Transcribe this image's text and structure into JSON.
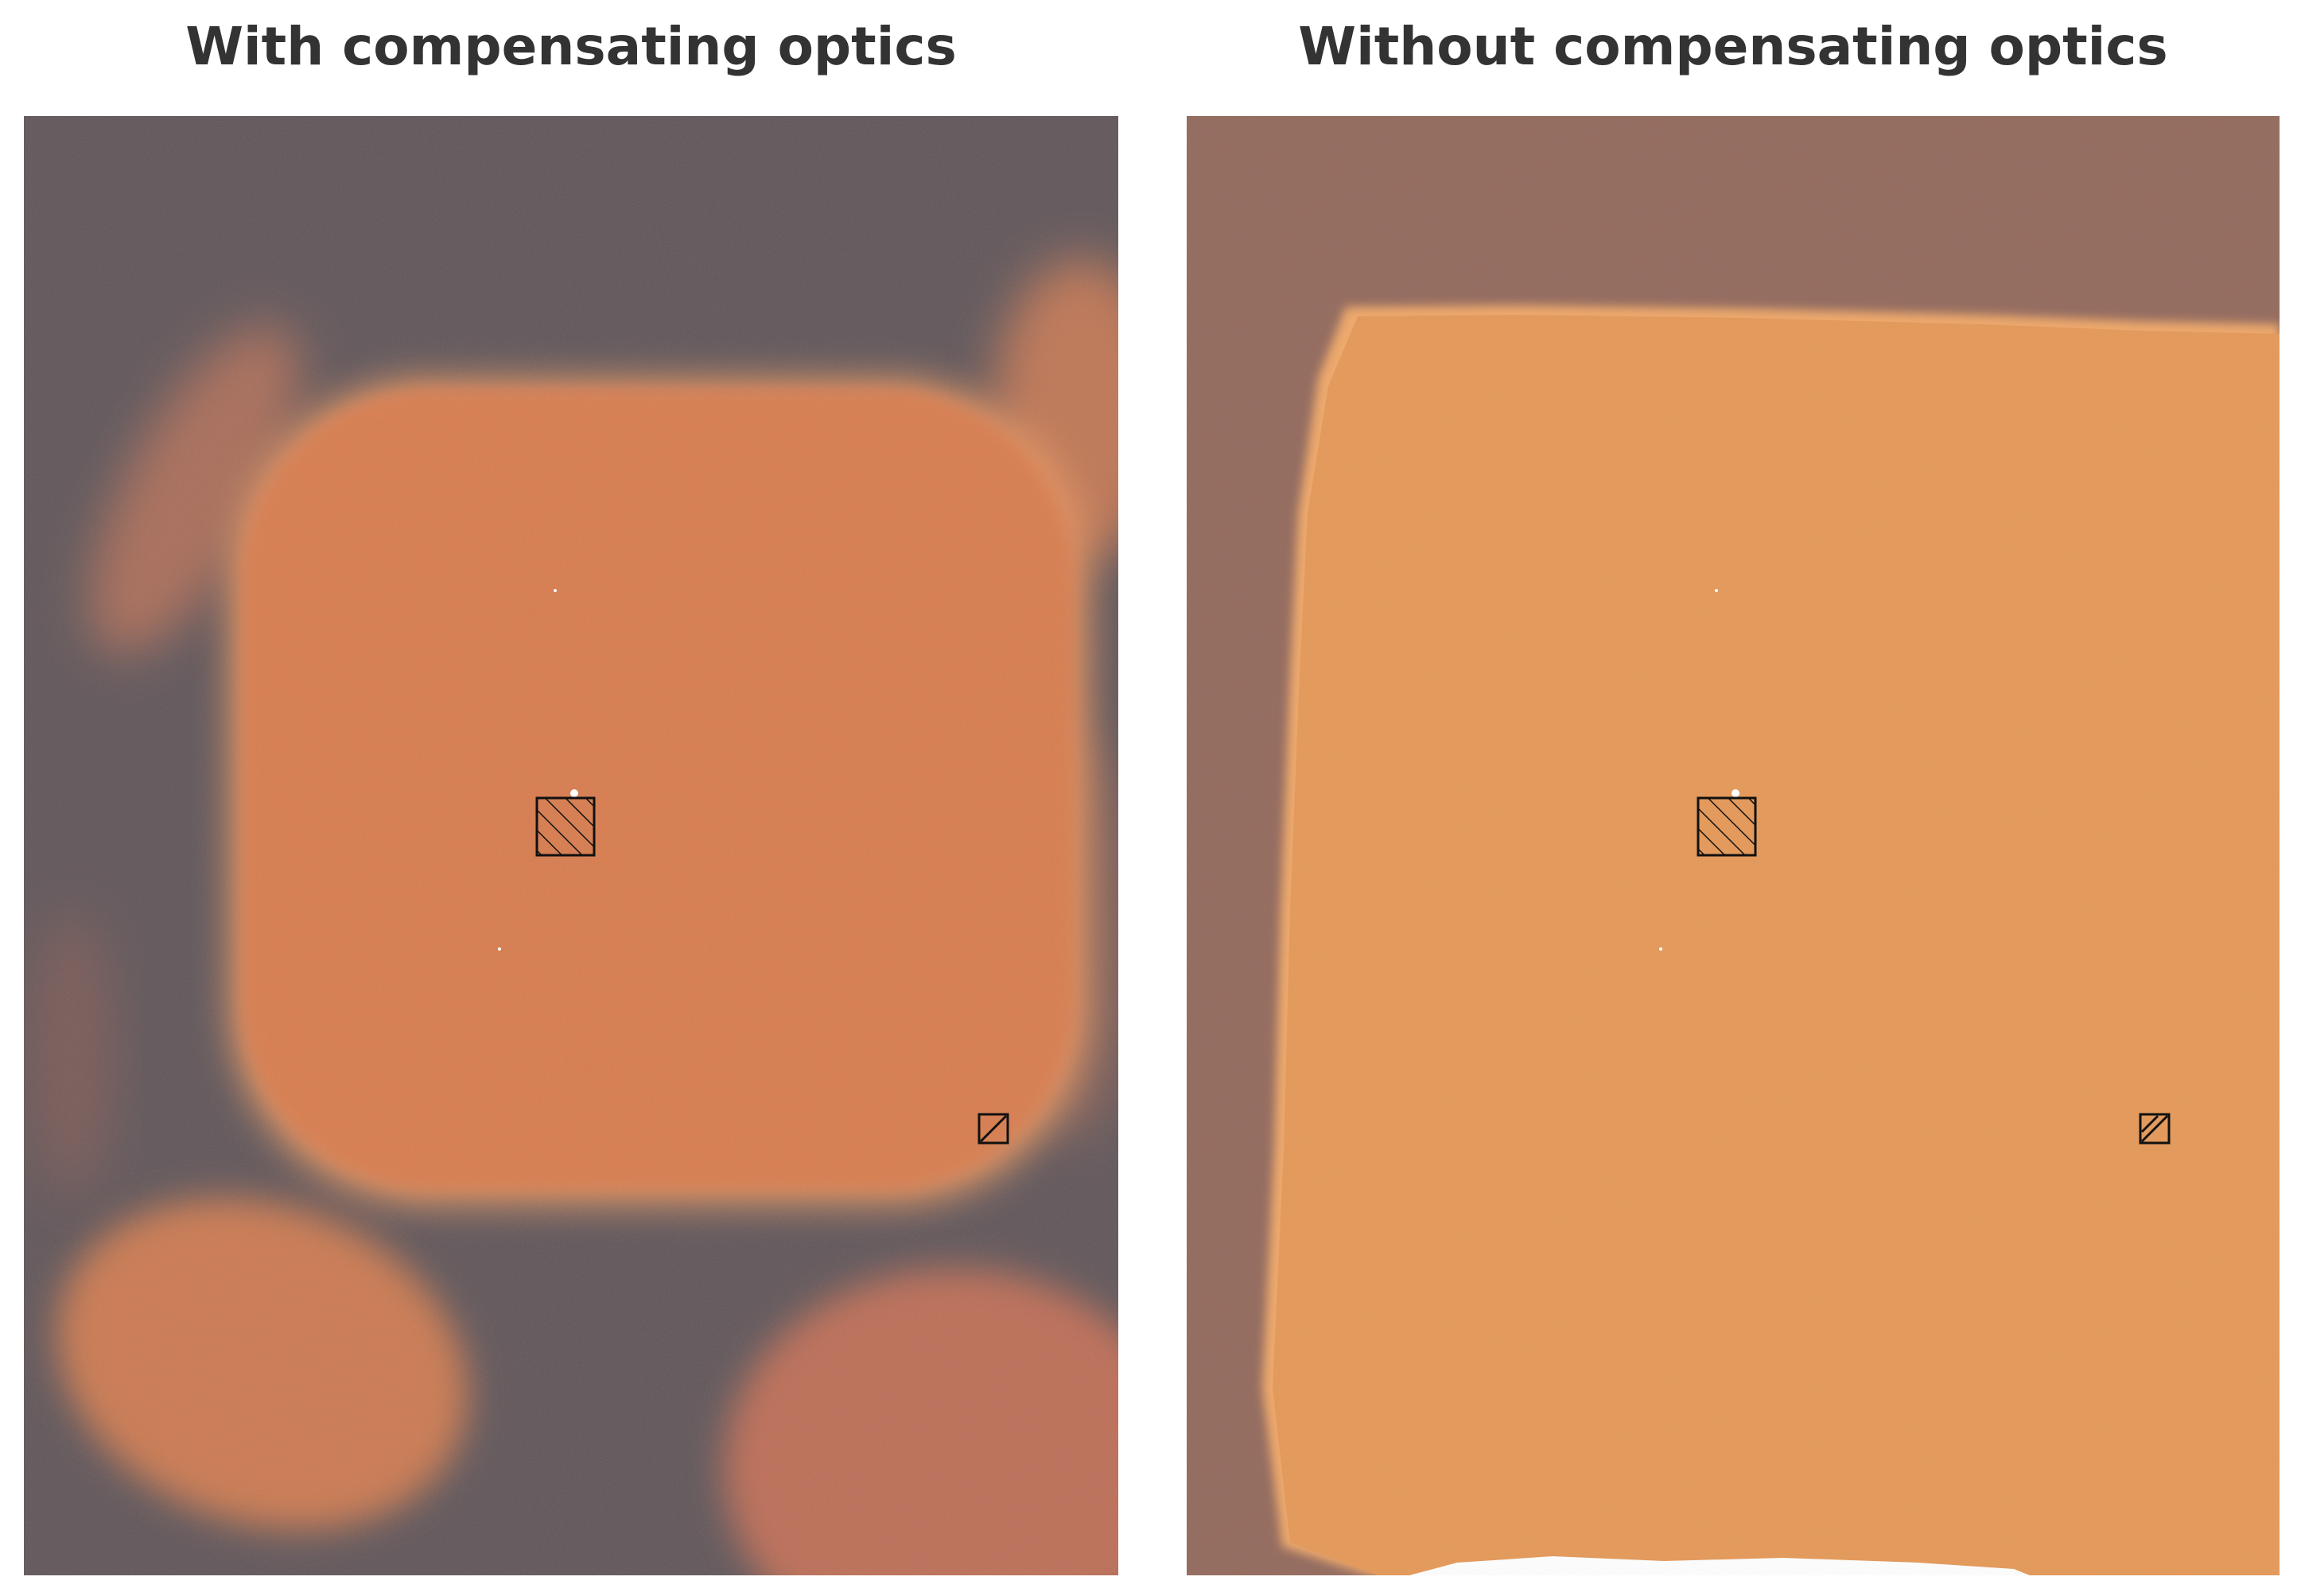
{
  "panels": [
    {
      "title": "With compensating optics",
      "colors": {
        "background": "#5f5458",
        "region": "#d97a4c",
        "fringe": "#e8945f"
      }
    },
    {
      "title": "Without compensating optics",
      "colors": {
        "background": "#93695c",
        "region": "#e59857",
        "fringe": "#f0a768"
      }
    }
  ],
  "markers": [
    "hatched-square-center",
    "hatched-square-small"
  ]
}
